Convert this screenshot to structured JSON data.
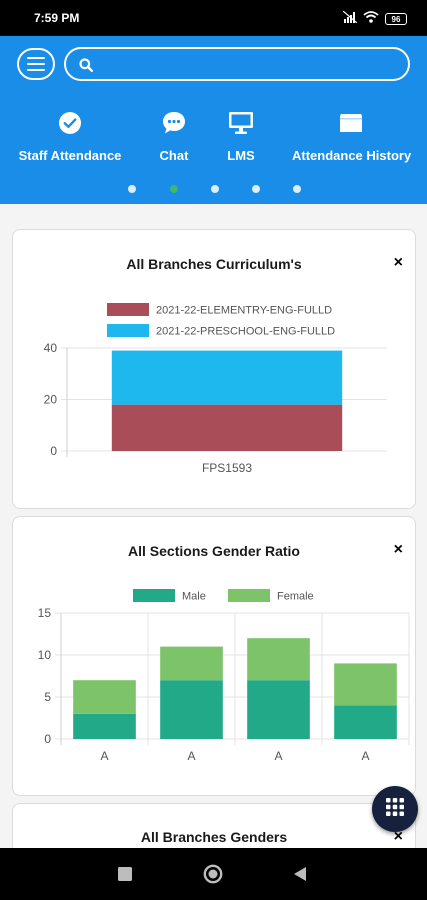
{
  "status_bar": {
    "time": "7:59 PM",
    "battery": "96"
  },
  "search": {
    "placeholder": ""
  },
  "quick_actions": [
    {
      "label": "Staff Attendance",
      "icon": "check-circle-icon"
    },
    {
      "label": "Chat",
      "icon": "chat-bubble-icon"
    },
    {
      "label": "LMS",
      "icon": "monitor-icon"
    },
    {
      "label": "Attendance History",
      "icon": "folder-icon"
    }
  ],
  "carousel": {
    "count": 5,
    "active_index": 1
  },
  "colors": {
    "primary": "#1a8de8",
    "active_dot": "#3cb96a",
    "series_red": "#a94d58",
    "series_blue": "#1eb8ee",
    "male": "#22aa88",
    "female": "#7cc36a",
    "fab": "#16213e"
  },
  "cards": [
    {
      "title": "All Branches Curriculum's",
      "close": "×"
    },
    {
      "title": "All Sections Gender Ratio",
      "close": "×"
    },
    {
      "title": "All Branches Genders",
      "close": "×"
    }
  ],
  "chart_data": [
    {
      "type": "bar",
      "stacked": true,
      "categories": [
        "FPS1593"
      ],
      "series": [
        {
          "name": "2021-22-ELEMENTRY-ENG-FULLD",
          "values": [
            18
          ]
        },
        {
          "name": "2021-22-PRESCHOOL-ENG-FULLD",
          "values": [
            21
          ]
        }
      ],
      "ylim": [
        0,
        40
      ],
      "yticks": [
        "0",
        "20",
        "40"
      ],
      "legend": "top",
      "grid": true
    },
    {
      "type": "bar",
      "stacked": true,
      "categories": [
        "A",
        "A",
        "A",
        "A"
      ],
      "series": [
        {
          "name": "Male",
          "values": [
            3,
            7,
            7,
            4
          ]
        },
        {
          "name": "Female",
          "values": [
            4,
            4,
            5,
            5
          ]
        }
      ],
      "ylim": [
        0,
        15
      ],
      "yticks": [
        "0",
        "5",
        "10",
        "15"
      ],
      "legend": "top",
      "grid": true
    }
  ]
}
